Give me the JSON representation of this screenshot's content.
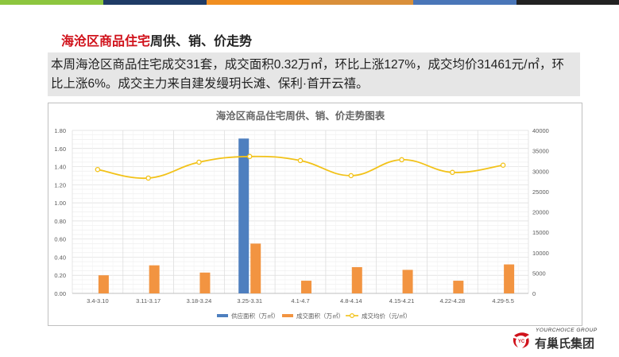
{
  "colors": {
    "top_bar": [
      "#8dc63f",
      "#1f3b66",
      "#f08e21",
      "#d98f3a",
      "#4a76b8",
      "#222222"
    ],
    "heading_accent": "#d0121b",
    "supply": "#4e7fbf",
    "deal_area": "#f29441",
    "avg_price": "#f2c218",
    "logo_red": "#d0121b"
  },
  "heading": {
    "accent": "海沧区商品住宅",
    "rest": "周供、销、价走势"
  },
  "summary": "本周海沧区商品住宅成交31套，成交面积0.32万㎡，环比上涨127%，成交均价31461元/㎡，环比上涨6%。成交主力来自建发缦玥长滩、保利·首开云禧。",
  "logo": {
    "en": "YOURCHOICE GROUP",
    "cn": "有巢氏集团",
    "mark_text": "YC"
  },
  "chart_data": {
    "type": "bar",
    "title": "海沧区商品住宅周供、销、价走势图表",
    "categories": [
      "3.4-3.10",
      "3.11-3.17",
      "3.18-3.24",
      "3.25-3.31",
      "4.1-4.7",
      "4.8-4.14",
      "4.15-4.21",
      "4.22-4.28",
      "4.29-5.5"
    ],
    "series": [
      {
        "name": "供应面积（万㎡）",
        "type": "bar",
        "axis": "left",
        "values": [
          0,
          0,
          0,
          1.71,
          0,
          0,
          0,
          0,
          0
        ]
      },
      {
        "name": "成交面积（万㎡）",
        "type": "bar",
        "axis": "left",
        "values": [
          0.2,
          0.31,
          0.23,
          0.55,
          0.14,
          0.29,
          0.26,
          0.14,
          0.32
        ]
      },
      {
        "name": "成交均价（元/㎡）",
        "type": "line",
        "axis": "right",
        "values": [
          30400,
          28300,
          32200,
          33600,
          32600,
          28900,
          32800,
          29700,
          31461
        ]
      }
    ],
    "y_left": {
      "range": [
        0,
        1.8
      ],
      "ticks": [
        "0.00",
        "0.20",
        "0.40",
        "0.60",
        "0.80",
        "1.00",
        "1.20",
        "1.40",
        "1.60",
        "1.80"
      ]
    },
    "y_right": {
      "range": [
        0,
        40000
      ],
      "ticks": [
        "0",
        "5000",
        "10000",
        "15000",
        "20000",
        "25000",
        "30000",
        "35000",
        "40000"
      ]
    },
    "grid": true,
    "legend_position": "bottom"
  }
}
